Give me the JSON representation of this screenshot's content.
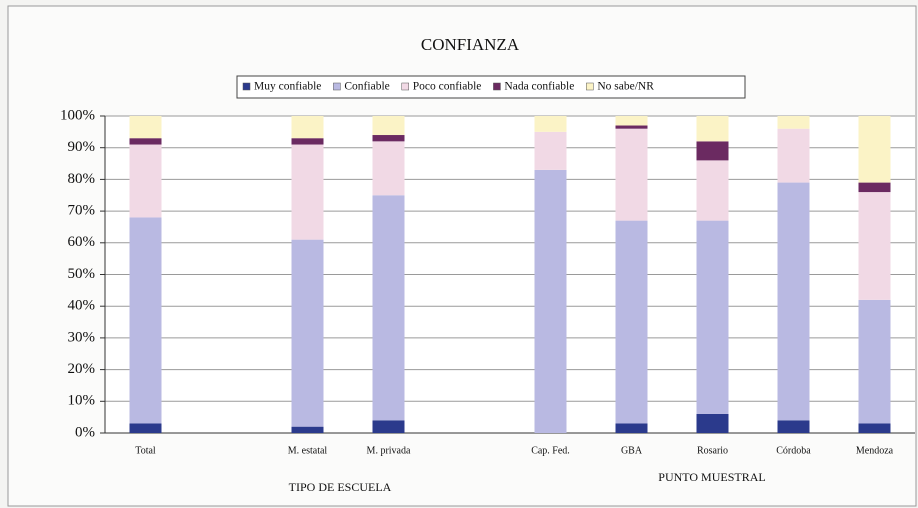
{
  "chart_data": {
    "type": "stacked_bar",
    "title": "CONFIANZA",
    "categories": [
      "Total",
      null,
      "M. estatal",
      "M. privada",
      null,
      "Cap. Fed.",
      "GBA",
      "Rosario",
      "Córdoba",
      "Mendoza"
    ],
    "series": [
      {
        "name": "Muy confiable",
        "color": "#2b3a8c",
        "values": [
          3,
          null,
          2,
          4,
          null,
          0,
          3,
          6,
          4,
          3
        ]
      },
      {
        "name": "Confiable",
        "color": "#b9b9e2",
        "values": [
          65,
          null,
          59,
          71,
          null,
          83,
          64,
          61,
          75,
          39
        ]
      },
      {
        "name": "Poco confiable",
        "color": "#f1d9e5",
        "values": [
          23,
          null,
          30,
          17,
          null,
          12,
          29,
          19,
          17,
          34
        ]
      },
      {
        "name": "Nada confiable",
        "color": "#6b2a61",
        "values": [
          2,
          null,
          2,
          2,
          null,
          0,
          1,
          6,
          0,
          3
        ]
      },
      {
        "name": "No sabe/NR",
        "color": "#fbf3c6",
        "values": [
          7,
          null,
          7,
          6,
          null,
          5,
          3,
          8,
          4,
          21
        ]
      }
    ],
    "ylim": [
      0,
      100
    ],
    "yticks": [
      {
        "value": 0,
        "label": "0%"
      },
      {
        "value": 10,
        "label": "10%"
      },
      {
        "value": 20,
        "label": "20%"
      },
      {
        "value": 30,
        "label": "30%"
      },
      {
        "value": 40,
        "label": "40%"
      },
      {
        "value": 50,
        "label": "50%"
      },
      {
        "value": 60,
        "label": "60%"
      },
      {
        "value": 70,
        "label": "70%"
      },
      {
        "value": 80,
        "label": "80%"
      },
      {
        "value": 90,
        "label": "90%"
      },
      {
        "value": 100,
        "label": "100%"
      }
    ],
    "annotations": [
      "TIPO DE ESCUELA",
      "PUNTO MUESTRAL"
    ],
    "grid": true,
    "legend": "top"
  }
}
